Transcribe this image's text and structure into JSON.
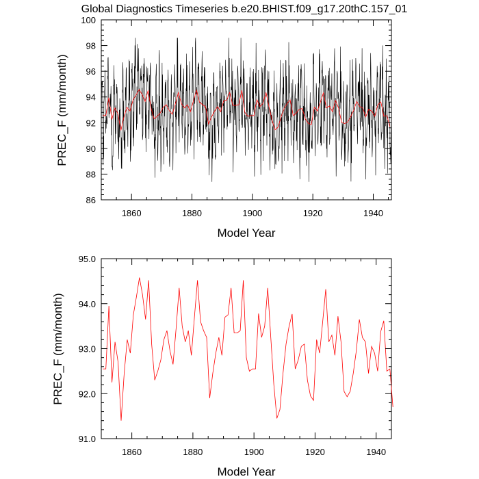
{
  "title": "Global Diagnostics Timeseries b.e20.BHIST.f09_g17.20thC.157_01",
  "chart_data": [
    {
      "type": "line",
      "panel": "monthly",
      "xlabel": "Model Year",
      "ylabel": "PREC_F (mm/month)",
      "xlim": [
        1850,
        1946
      ],
      "ylim": [
        86,
        100
      ],
      "x_ticks": [
        1860,
        1880,
        1900,
        1920,
        1940
      ],
      "x_tick_labels": [
        "1860",
        "1880",
        "1900",
        "1920",
        "1940"
      ],
      "y_ticks": [
        86,
        88,
        90,
        92,
        94,
        96,
        98,
        100
      ],
      "y_tick_labels": [
        "86",
        "88",
        "90",
        "92",
        "94",
        "96",
        "98",
        "100"
      ],
      "series": [
        {
          "name": "monthly",
          "color": "#000000",
          "stroke_width": 0.6,
          "generated": "monthly values with seasonal cycle (~±2.3 mm/month) plus noise around the annual mean; range approx 87.4–98.6",
          "seasonal_amplitude": 2.3,
          "noise_amplitude": 2.0,
          "seed": 12345,
          "months": 1152
        },
        {
          "name": "annual-mean",
          "color": "#ff0000",
          "stroke_width": 0.8,
          "ref": "annual"
        }
      ]
    },
    {
      "type": "line",
      "panel": "annual",
      "xlabel": "Model Year",
      "ylabel": "PREC_F (mm/month)",
      "xlim": [
        1850,
        1945
      ],
      "ylim": [
        91.0,
        95.0
      ],
      "x_ticks": [
        1860,
        1880,
        1900,
        1920,
        1940
      ],
      "x_tick_labels": [
        "1860",
        "1880",
        "1900",
        "1920",
        "1940"
      ],
      "y_ticks": [
        91.0,
        92.0,
        93.0,
        94.0,
        95.0
      ],
      "y_tick_labels": [
        "91.0",
        "92.0",
        "93.0",
        "94.0",
        "95.0"
      ],
      "series": [
        {
          "name": "annual",
          "color": "#ff0000",
          "x_start": 1850.5,
          "values": [
            92.55,
            92.55,
            93.95,
            92.25,
            93.15,
            92.7,
            91.4,
            92.45,
            93.2,
            92.9,
            93.75,
            94.15,
            94.58,
            94.2,
            93.65,
            94.52,
            93.1,
            92.3,
            92.5,
            92.75,
            93.2,
            93.4,
            92.95,
            92.65,
            93.45,
            94.35,
            93.5,
            93.15,
            93.4,
            92.85,
            93.7,
            94.52,
            93.6,
            93.4,
            93.25,
            91.9,
            92.45,
            92.9,
            93.25,
            92.85,
            93.7,
            93.75,
            94.35,
            93.35,
            93.35,
            93.4,
            94.52,
            92.8,
            92.5,
            92.55,
            92.55,
            93.78,
            93.25,
            93.5,
            94.35,
            93.25,
            92.2,
            91.45,
            91.65,
            92.45,
            93.1,
            93.5,
            93.77,
            92.55,
            92.75,
            93.05,
            93.1,
            92.3,
            91.95,
            91.85,
            93.2,
            92.9,
            93.6,
            94.32,
            93.15,
            93.3,
            92.85,
            93.72,
            93.15,
            92.05,
            91.93,
            92.05,
            92.45,
            92.95,
            93.65,
            93.25,
            93.15,
            92.45,
            93.05,
            92.9,
            92.5,
            93.38,
            93.62,
            92.5,
            92.55,
            91.7
          ]
        }
      ]
    }
  ]
}
